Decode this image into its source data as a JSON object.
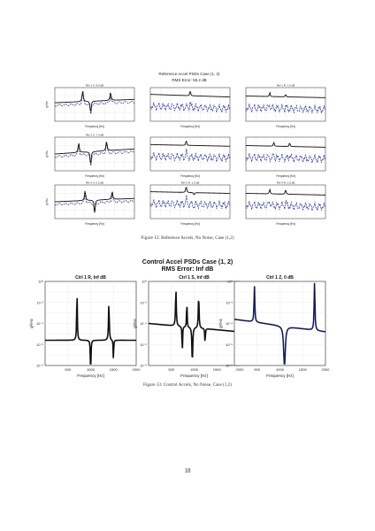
{
  "figure12": {
    "suptitle": "Reference Accel PSDs Case (1, 2)",
    "rms": "RMS Error: 55.2 dB",
    "panel_titles": [
      "Ref 1 X, 9.6 dB",
      "",
      "Ref 1 R, 1.5 dB",
      "Ref 2 X, 7.3 dB",
      "",
      "",
      "Ref 3 X, 0.5 dB",
      "Ref 3 R, 1.5 dB",
      "Ref 3 R, 1.5 dB"
    ],
    "xlabel": "Frequency [Hz]",
    "ylabel": "g²/Hz",
    "caption": "Figure 12: Reference Accels, No Noise, Case (1,2)"
  },
  "figure13": {
    "suptitle": "Control Accel PSDs Case (1, 2)",
    "rms": "RMS Error: Inf dB",
    "panel_titles": [
      "Ctrl 1 R, Inf dB",
      "Ctrl 1 S, Inf dB",
      "Ctrl 1 Z, 0 dB"
    ],
    "xlabel": "Frequency [Hz]",
    "ylabel": "g²/Hz",
    "xticks": [
      "500",
      "1000",
      "1500",
      "2000"
    ],
    "yticks": [
      "10⁰",
      "10⁻²",
      "10⁻⁴",
      "10⁻⁶",
      "10⁻⁸"
    ],
    "caption": "Figure 13: Control Accels, No Noise, Case (1,2)"
  },
  "page_number": "18",
  "colors": {
    "reference": "#111111",
    "measured": "#1f2a8c"
  }
}
